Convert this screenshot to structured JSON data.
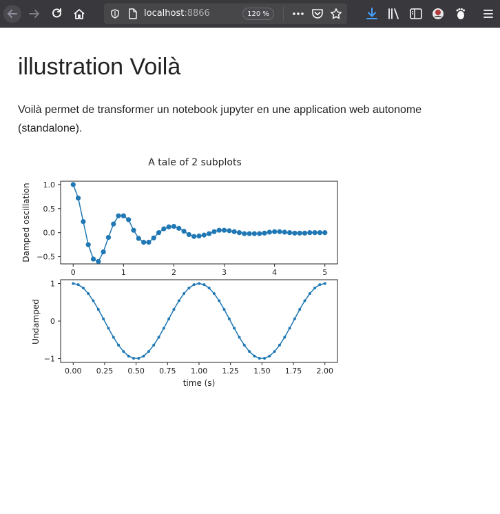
{
  "browser": {
    "url_host": "localhost",
    "url_port": ":8866",
    "zoom": "120 %",
    "more_icon": "ellipsis-icon",
    "pocket_icon": "pocket-icon",
    "bookmark_icon": "star-icon"
  },
  "page": {
    "title": "illustration Voilà",
    "description": "Voilà permet de transformer un notebook jupyter en une application web autonome (standalone)."
  },
  "chart_data": [
    {
      "type": "line",
      "title": "A tale of 2 subplots",
      "xlabel": "",
      "ylabel": "Damped oscillation",
      "xlim": [
        -0.25,
        5.25
      ],
      "ylim": [
        -0.65,
        1.07
      ],
      "xticks": [
        "0",
        "1",
        "2",
        "3",
        "4",
        "5"
      ],
      "yticks": [
        "1.0",
        "0.5",
        "0.0",
        "−0.5"
      ],
      "marker": "circle",
      "color": "#1f77b4",
      "series": [
        {
          "x": [
            0.0,
            0.1,
            0.2,
            0.3,
            0.4,
            0.5,
            0.6,
            0.7,
            0.8,
            0.9,
            1.0,
            1.1,
            1.2,
            1.3,
            1.4,
            1.5,
            1.6,
            1.7,
            1.8,
            1.9,
            2.0,
            2.1,
            2.2,
            2.3,
            2.4,
            2.5,
            2.6,
            2.7,
            2.8,
            2.9,
            3.0,
            3.1,
            3.2,
            3.3,
            3.4,
            3.5,
            3.6,
            3.7,
            3.8,
            3.9,
            4.0,
            4.1,
            4.2,
            4.3,
            4.4,
            4.5,
            4.6,
            4.7,
            4.8,
            4.9,
            5.0
          ],
          "y": [
            1.0,
            0.72,
            0.23,
            -0.25,
            -0.55,
            -0.6,
            -0.4,
            -0.1,
            0.18,
            0.35,
            0.35,
            0.27,
            0.05,
            -0.12,
            -0.2,
            -0.2,
            -0.11,
            0.0,
            0.08,
            0.12,
            0.13,
            0.09,
            0.03,
            -0.04,
            -0.08,
            -0.07,
            -0.05,
            -0.02,
            0.02,
            0.05,
            0.05,
            0.04,
            0.02,
            0.0,
            -0.02,
            -0.02,
            -0.02,
            -0.02,
            -0.01,
            0.01,
            0.02,
            0.02,
            0.01,
            0.0,
            -0.01,
            -0.01,
            -0.01,
            0.0,
            0.0,
            0.0,
            0.0
          ]
        }
      ]
    },
    {
      "type": "line",
      "title": "",
      "xlabel": "time (s)",
      "ylabel": "Undamped",
      "xlim": [
        -0.1,
        2.1
      ],
      "ylim": [
        -1.1,
        1.1
      ],
      "xticks": [
        "0.00",
        "0.25",
        "0.50",
        "0.75",
        "1.00",
        "1.25",
        "1.50",
        "1.75",
        "2.00"
      ],
      "yticks": [
        "1",
        "0",
        "−1"
      ],
      "marker": "dot",
      "color": "#1f77b4",
      "series": [
        {
          "x": [
            0.0,
            0.04,
            0.08,
            0.12,
            0.16,
            0.2,
            0.24,
            0.28,
            0.32,
            0.36,
            0.4,
            0.44,
            0.48,
            0.52,
            0.56,
            0.6,
            0.64,
            0.68,
            0.72,
            0.76,
            0.8,
            0.84,
            0.88,
            0.92,
            0.96,
            1.0,
            1.04,
            1.08,
            1.12,
            1.16,
            1.2,
            1.24,
            1.28,
            1.32,
            1.36,
            1.4,
            1.44,
            1.48,
            1.52,
            1.56,
            1.6,
            1.64,
            1.68,
            1.72,
            1.76,
            1.8,
            1.84,
            1.88,
            1.92,
            1.96,
            2.0
          ],
          "y": [
            1.0,
            0.97,
            0.88,
            0.73,
            0.54,
            0.31,
            0.06,
            -0.19,
            -0.43,
            -0.64,
            -0.81,
            -0.93,
            -0.99,
            -0.99,
            -0.93,
            -0.81,
            -0.64,
            -0.43,
            -0.19,
            0.06,
            0.31,
            0.54,
            0.73,
            0.88,
            0.97,
            1.0,
            0.97,
            0.88,
            0.73,
            0.54,
            0.31,
            0.06,
            -0.19,
            -0.43,
            -0.64,
            -0.81,
            -0.93,
            -0.99,
            -0.99,
            -0.93,
            -0.81,
            -0.64,
            -0.43,
            -0.19,
            0.06,
            0.31,
            0.54,
            0.73,
            0.88,
            0.97,
            1.0
          ]
        }
      ]
    }
  ]
}
